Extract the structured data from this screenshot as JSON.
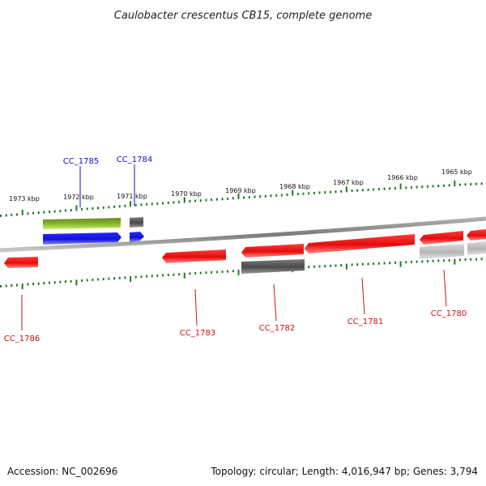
{
  "title": "Caulobacter crescentus CB15, complete genome",
  "footer": {
    "accession": "Accession: NC_002696",
    "summary": "Topology: circular; Length: 4,016,947 bp; Genes: 3,794"
  },
  "scale_labels": [
    "1973 kbp",
    "1972 kbp",
    "1971 kbp",
    "1970 kbp",
    "1969 kbp",
    "1968 kbp",
    "1967 kbp",
    "1966 kbp",
    "1965 kbp"
  ],
  "colors": {
    "backbone": "#8a8a8a",
    "tick": "#1f7a1f",
    "forward_gene": "#1c1ce6",
    "reverse_gene": "#e81010",
    "label_forward": "#1010c0",
    "label_reverse": "#d01010",
    "pseudo_gene": "#555555",
    "rna_gene": "#8fbf3a",
    "light_gene": "#bfbfbf"
  },
  "gene_labels": {
    "cc1786": "CC_1786",
    "cc1785": "CC_1785",
    "cc1784": "CC_1784",
    "cc1783": "CC_1783",
    "cc1782": "CC_1782",
    "cc1781": "CC_1781",
    "cc1780": "CC_1780"
  }
}
